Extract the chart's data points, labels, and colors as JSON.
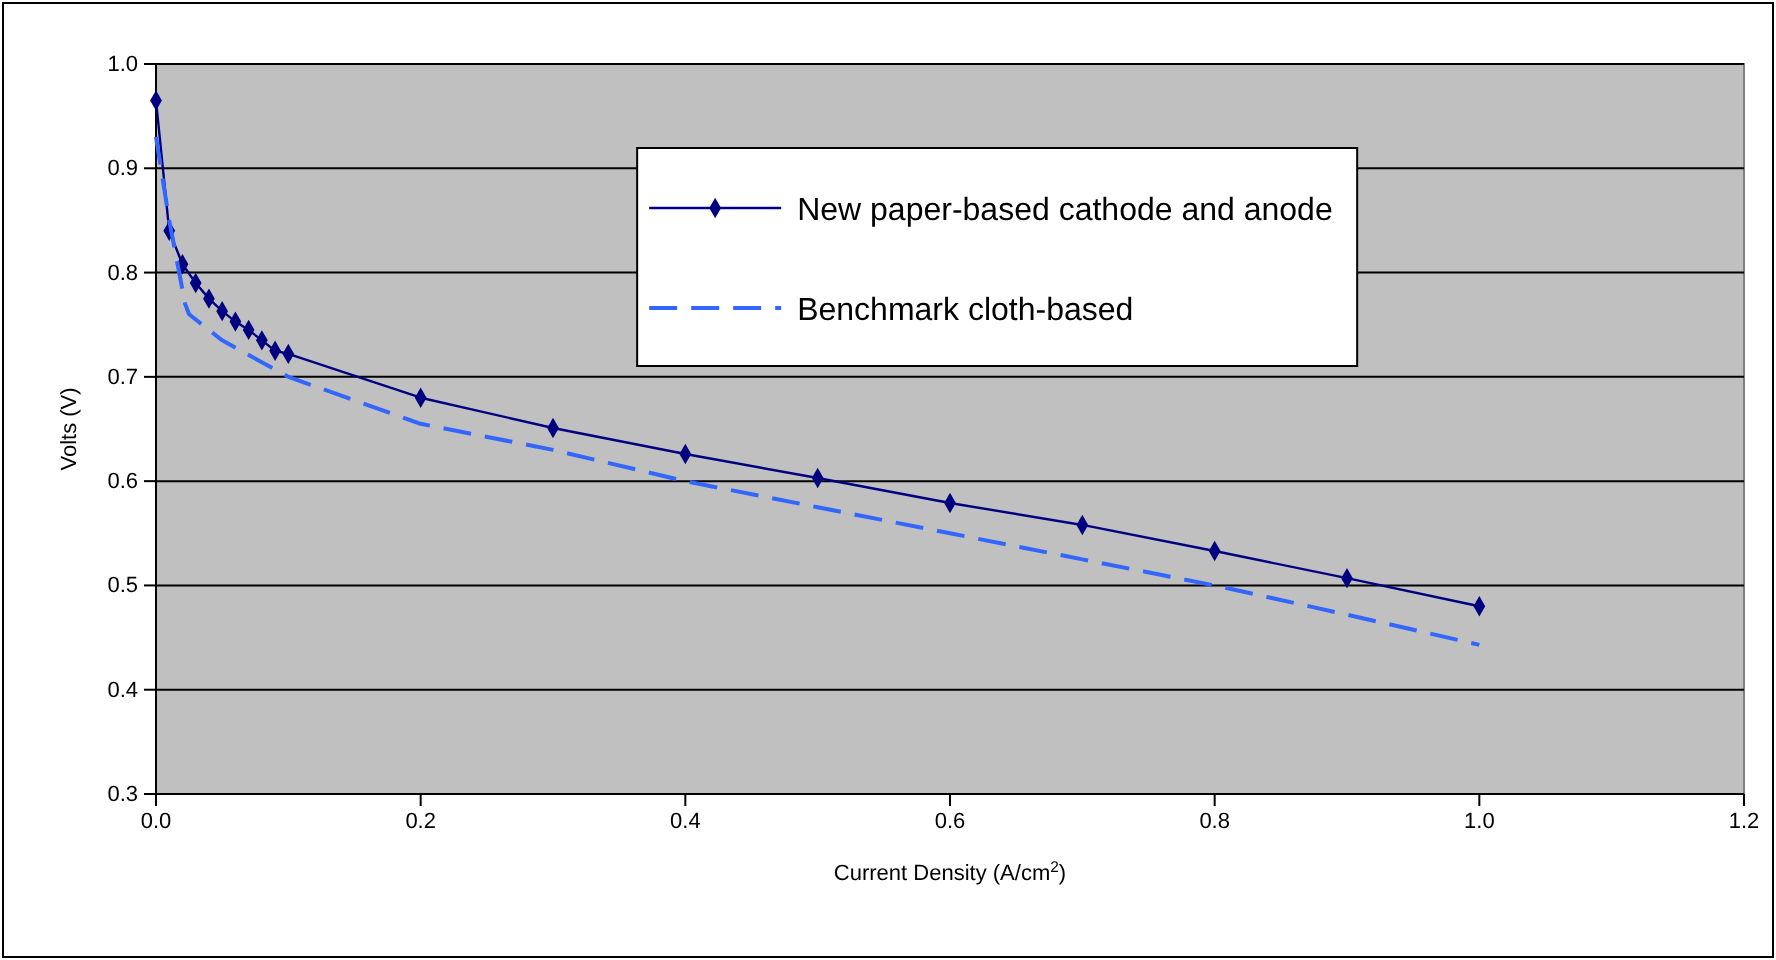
{
  "chart_data": {
    "type": "line",
    "xlabel": "Current Density (A/cm$^{2}$)",
    "ylabel": "Volts (V)",
    "xlim": [
      0,
      1.2
    ],
    "xticks": [
      {
        "value": 0,
        "label": "0.0"
      },
      0.2,
      0.4,
      0.6,
      0.8,
      {
        "value": 1,
        "label": "1.0"
      },
      1.2
    ],
    "ylim": [
      0.3,
      1.0
    ],
    "yticks": [
      0.3,
      0.4,
      0.5,
      0.6,
      0.7,
      0.8,
      0.9,
      {
        "value": 1,
        "label": "1.0"
      }
    ],
    "grid": "y",
    "legend": "top right",
    "series": [
      {
        "name": "New paper-based cathode and anode",
        "color": "#000080",
        "marker": "diamond",
        "line_style": "solid",
        "x": [
          0,
          0.01,
          0.02,
          0.03,
          0.04,
          0.05,
          0.06,
          0.07,
          0.08,
          0.09,
          0.1,
          0.2,
          0.3,
          0.4,
          0.5,
          0.6,
          0.7,
          0.8,
          0.9,
          1.0
        ],
        "values": [
          0.965,
          0.84,
          0.808,
          0.79,
          0.775,
          0.763,
          0.753,
          0.745,
          0.735,
          0.725,
          0.722,
          0.68,
          0.651,
          0.626,
          0.603,
          0.579,
          0.558,
          0.533,
          0.507,
          0.48
        ]
      },
      {
        "name": "Benchmark cloth-based",
        "color": "#3366ff",
        "marker": "none",
        "line_style": "dashed",
        "x": [
          0,
          0.01,
          0.022,
          0.025,
          0.05,
          0.1,
          0.2,
          0.3,
          0.4,
          0.5,
          0.6,
          0.7,
          0.8,
          0.9,
          1.0
        ],
        "values": [
          0.93,
          0.85,
          0.77,
          0.76,
          0.735,
          0.7,
          0.655,
          0.63,
          0.6,
          0.575,
          0.55,
          0.525,
          0.5,
          0.472,
          0.443
        ]
      }
    ]
  }
}
